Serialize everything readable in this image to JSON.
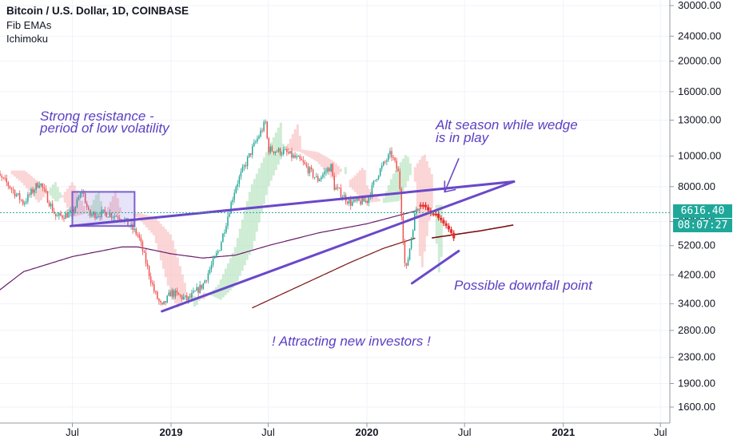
{
  "header": {
    "title": "Bitcoin / U.S. Dollar, 1D, COINBASE",
    "indicator_1": "Fib EMAs",
    "indicator_2": "Ichimoku"
  },
  "current_price": {
    "value": "6616.40",
    "countdown": "08:07:27",
    "color": "#1fa89a"
  },
  "annotations": {
    "resistance_line1": "Strong resistance -",
    "resistance_line2": "period of low volatility",
    "alt_line1": "Alt season while wedge",
    "alt_line2": "is in play",
    "downfall": "Possible downfall point",
    "investors": "! Attracting new investors !"
  },
  "colors": {
    "bull": "#26a69a",
    "bear": "#ef5350",
    "annotation": "#5b3fc2",
    "ema_purple": "#6a1b6a",
    "ema_dark": "#7a1212"
  },
  "chart_data": {
    "type": "candlestick",
    "symbol": "Bitcoin / U.S. Dollar, 1D, COINBASE",
    "y_scale": "log",
    "ylim": [
      1400,
      31000
    ],
    "y_ticks": [
      30000,
      24000,
      20000,
      16000,
      13000,
      10000,
      8000,
      6200,
      5200,
      4200,
      3400,
      2800,
      2300,
      1900,
      1600
    ],
    "y_tick_labels": [
      "30000.00",
      "24000.00",
      "20000.00",
      "16000.00",
      "13000.00",
      "10000.00",
      "8000.00",
      "6200.00",
      "5200.00",
      "4200.00",
      "3400.00",
      "2800.00",
      "2300.00",
      "1900.00",
      "1600.00"
    ],
    "x_ticks": [
      "Jul",
      "2019",
      "Jul",
      "2020",
      "Jul",
      "2021",
      "Jul"
    ],
    "x_tick_dates": [
      "2018-07",
      "2019-01",
      "2019-07",
      "2020-01",
      "2020-07",
      "2021-01",
      "2021-07"
    ],
    "x_range": [
      "2018-02",
      "2021-08"
    ],
    "price_path": [
      [
        "2018-02",
        9000
      ],
      [
        "2018-03",
        8200
      ],
      [
        "2018-04",
        7100
      ],
      [
        "2018-05",
        8300
      ],
      [
        "2018-06",
        6400
      ],
      [
        "2018-07",
        6600
      ],
      [
        "2018-07-20",
        7800
      ],
      [
        "2018-08",
        6500
      ],
      [
        "2018-09",
        6600
      ],
      [
        "2018-10",
        6400
      ],
      [
        "2018-11",
        5600
      ],
      [
        "2018-11-20",
        4300
      ],
      [
        "2018-12",
        3700
      ],
      [
        "2018-12-15",
        3300
      ],
      [
        "2019-01",
        3700
      ],
      [
        "2019-02",
        3500
      ],
      [
        "2019-03",
        3900
      ],
      [
        "2019-04",
        5100
      ],
      [
        "2019-05",
        8000
      ],
      [
        "2019-06",
        10500
      ],
      [
        "2019-06-26",
        12800
      ],
      [
        "2019-07",
        10500
      ],
      [
        "2019-08",
        10300
      ],
      [
        "2019-09",
        9600
      ],
      [
        "2019-10",
        8400
      ],
      [
        "2019-10-26",
        9300
      ],
      [
        "2019-11",
        8000
      ],
      [
        "2019-12",
        7100
      ],
      [
        "2020-01",
        7200
      ],
      [
        "2020-01-20",
        8700
      ],
      [
        "2020-02",
        9400
      ],
      [
        "2020-02-15",
        10200
      ],
      [
        "2020-03",
        8700
      ],
      [
        "2020-03-13",
        4200
      ],
      [
        "2020-04",
        6800
      ],
      [
        "2020-04-10",
        7000
      ]
    ],
    "projection_path": [
      [
        "2020-04-10",
        7000
      ],
      [
        "2020-04-25",
        6700
      ],
      [
        "2020-05-10",
        6500
      ],
      [
        "2020-05-25",
        6100
      ],
      [
        "2020-06-10",
        5700
      ],
      [
        "2020-06-15",
        4900
      ]
    ],
    "ema_purple": [
      [
        "2018-02",
        3600
      ],
      [
        "2018-04",
        4300
      ],
      [
        "2018-07",
        4800
      ],
      [
        "2018-10",
        5150
      ],
      [
        "2018-11",
        5150
      ],
      [
        "2019-01",
        4900
      ],
      [
        "2019-03",
        4750
      ],
      [
        "2019-05",
        4850
      ],
      [
        "2019-07",
        5200
      ],
      [
        "2019-10",
        5700
      ],
      [
        "2020-01",
        6100
      ],
      [
        "2020-04",
        6700
      ]
    ],
    "ema_dark": [
      [
        "2019-06",
        3300
      ],
      [
        "2019-09",
        3900
      ],
      [
        "2019-12",
        4600
      ],
      [
        "2020-02",
        5100
      ],
      [
        "2020-04",
        5500
      ]
    ],
    "ema_dark_projection": [
      [
        "2020-05",
        5500
      ],
      [
        "2020-08",
        5800
      ],
      [
        "2020-10",
        6050
      ]
    ],
    "trend_lines": [
      {
        "name": "upper-resistance-line",
        "from": [
          "2018-06-28",
          6000
        ],
        "to": [
          "2020-10",
          8300
        ]
      },
      {
        "name": "lower-support-line",
        "from": [
          "2018-12-15",
          3220
        ],
        "to": [
          "2020-10",
          8300
        ]
      },
      {
        "name": "downfall-bracket-line",
        "from": [
          "2020-03-25",
          3950
        ],
        "to": [
          "2020-06-20",
          5000
        ]
      },
      {
        "name": "alt-season-arrow",
        "from": [
          "2020-06-20",
          9800
        ],
        "to": [
          "2020-05-25",
          7700
        ]
      }
    ],
    "range_box": {
      "from": "2018-07-01",
      "to": "2018-10-25",
      "top": 7700,
      "bottom": 6000
    },
    "current_price_line": 6616.4
  }
}
